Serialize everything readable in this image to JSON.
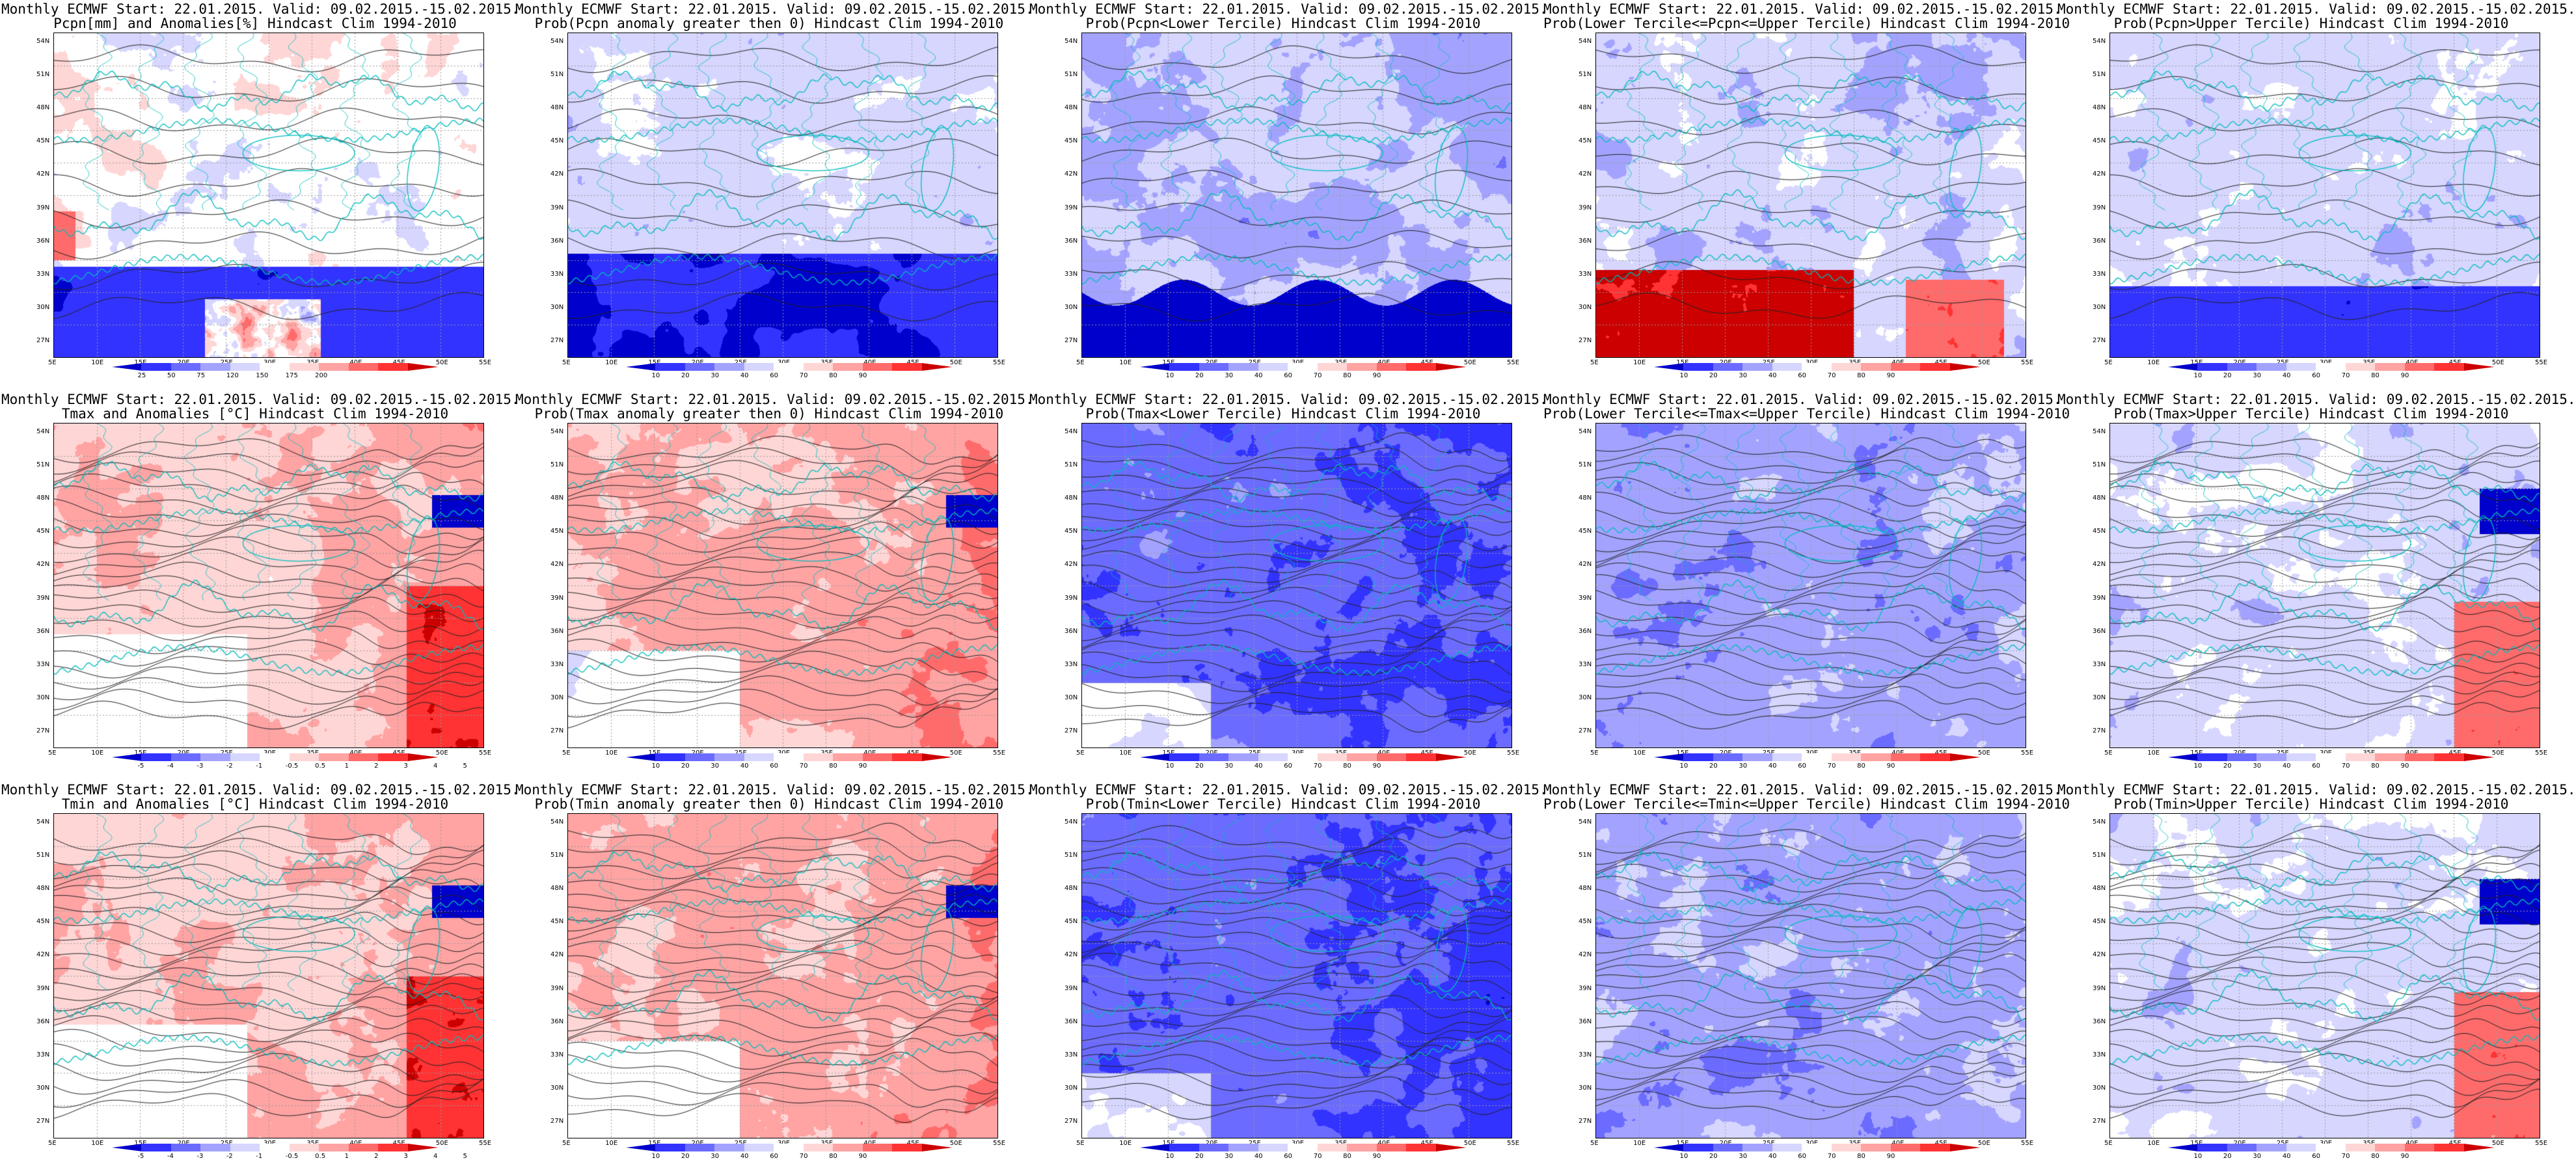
{
  "figure": {
    "panels": [
      {
        "id": "pcpn-anom",
        "title1": "Monthly ECMWF Start: 22.01.2015. Valid: 09.02.2015.-15.02.2015.",
        "title2": "Pcpn[mm] and Anomalies[%] Hindcast Clim 1994-2010",
        "field": "precip-anomaly",
        "contours": "few",
        "colorbar": "pcpn"
      },
      {
        "id": "pcpn-prob-gt0",
        "title1": "Monthly ECMWF Start: 22.01.2015. Valid: 09.02.2015.-15.02.2015.",
        "title2": "Prob(Pcpn anomaly greater then 0) Hindcast Clim 1994-2010",
        "field": "precip-prob-gt0",
        "contours": "few",
        "colorbar": "prob"
      },
      {
        "id": "pcpn-prob-lower",
        "title1": "Monthly ECMWF Start: 22.01.2015. Valid: 09.02.2015.-15.02.2015.",
        "title2": "Prob(Pcpn<Lower Tercile) Hindcast Clim 1994-2010",
        "field": "precip-prob-lower",
        "contours": "few",
        "colorbar": "prob"
      },
      {
        "id": "pcpn-prob-middle",
        "title1": "Monthly ECMWF Start: 22.01.2015. Valid: 09.02.2015.-15.02.2015.",
        "title2": "Prob(Lower Tercile<=Pcpn<=Upper Tercile) Hindcast Clim 1994-2010",
        "field": "precip-prob-middle",
        "contours": "few",
        "colorbar": "prob"
      },
      {
        "id": "pcpn-prob-upper",
        "title1": "Monthly ECMWF Start: 22.01.2015. Valid: 09.02.2015.-15.02.2015.",
        "title2": "Prob(Pcpn>Upper Tercile) Hindcast Clim 1994-2010",
        "field": "precip-prob-upper",
        "contours": "few",
        "colorbar": "prob"
      },
      {
        "id": "tmax-anom",
        "title1": "Monthly ECMWF Start: 22.01.2015. Valid: 09.02.2015.-15.02.2015.",
        "title2": "Tmax and Anomalies [°C] Hindcast Clim 1994-2010",
        "field": "tmax-anomaly",
        "contours": "many",
        "colorbar": "temp"
      },
      {
        "id": "tmax-prob-gt0",
        "title1": "Monthly ECMWF Start: 22.01.2015. Valid: 09.02.2015.-15.02.2015.",
        "title2": "Prob(Tmax anomaly greater then 0) Hindcast Clim 1994-2010",
        "field": "tmax-prob-gt0",
        "contours": "many",
        "colorbar": "prob"
      },
      {
        "id": "tmax-prob-lower",
        "title1": "Monthly ECMWF Start: 22.01.2015. Valid: 09.02.2015.-15.02.2015.",
        "title2": "Prob(Tmax<Lower Tercile) Hindcast Clim 1994-2010",
        "field": "tmax-prob-lower",
        "contours": "many",
        "colorbar": "prob"
      },
      {
        "id": "tmax-prob-middle",
        "title1": "Monthly ECMWF Start: 22.01.2015. Valid: 09.02.2015.-15.02.2015.",
        "title2": "Prob(Lower Tercile<=Tmax<=Upper Tercile) Hindcast Clim 1994-2010",
        "field": "tmax-prob-middle",
        "contours": "many",
        "colorbar": "prob"
      },
      {
        "id": "tmax-prob-upper",
        "title1": "Monthly ECMWF Start: 22.01.2015. Valid: 09.02.2015.-15.02.2015.",
        "title2": "Prob(Tmax>Upper Tercile) Hindcast Clim 1994-2010",
        "field": "tmax-prob-upper",
        "contours": "many",
        "colorbar": "prob"
      },
      {
        "id": "tmin-anom",
        "title1": "Monthly ECMWF Start: 22.01.2015. Valid: 09.02.2015.-15.02.2015.",
        "title2": "Tmin and Anomalies [°C] Hindcast Clim 1994-2010",
        "field": "tmin-anomaly",
        "contours": "many",
        "colorbar": "temp"
      },
      {
        "id": "tmin-prob-gt0",
        "title1": "Monthly ECMWF Start: 22.01.2015. Valid: 09.02.2015.-15.02.2015.",
        "title2": "Prob(Tmin anomaly greater then 0) Hindcast Clim 1994-2010",
        "field": "tmin-prob-gt0",
        "contours": "many",
        "colorbar": "prob"
      },
      {
        "id": "tmin-prob-lower",
        "title1": "Monthly ECMWF Start: 22.01.2015. Valid: 09.02.2015.-15.02.2015.",
        "title2": "Prob(Tmin<Lower Tercile) Hindcast Clim 1994-2010",
        "field": "tmin-prob-lower",
        "contours": "many",
        "colorbar": "prob"
      },
      {
        "id": "tmin-prob-middle",
        "title1": "Monthly ECMWF Start: 22.01.2015. Valid: 09.02.2015.-15.02.2015.",
        "title2": "Prob(Lower Tercile<=Tmin<=Upper Tercile) Hindcast Clim 1994-2010",
        "field": "tmin-prob-middle",
        "contours": "many",
        "colorbar": "prob"
      },
      {
        "id": "tmin-prob-upper",
        "title1": "Monthly ECMWF Start: 22.01.2015. Valid: 09.02.2015.-15.02.2015.",
        "title2": "Prob(Tmin>Upper Tercile) Hindcast Clim 1994-2010",
        "field": "tmin-prob-upper",
        "contours": "many",
        "colorbar": "prob"
      }
    ],
    "lat_ticks": [
      "54N",
      "51N",
      "48N",
      "45N",
      "42N",
      "39N",
      "36N",
      "33N",
      "30N",
      "27N"
    ],
    "lon_ticks": [
      "5E",
      "10E",
      "15E",
      "20E",
      "25E",
      "30E",
      "35E",
      "40E",
      "45E",
      "50E",
      "55E"
    ],
    "colorbars": {
      "pcpn": {
        "ticks": [
          "25",
          "50",
          "75",
          "120",
          "150",
          "175",
          "200"
        ],
        "colors": [
          "#0000cc",
          "#3333ff",
          "#6b6bff",
          "#a3a3ff",
          "#d6d6ff",
          "#ffffff",
          "#ffd6d6",
          "#ffa3a3",
          "#ff6b6b",
          "#ff3333",
          "#cc0000"
        ]
      },
      "prob": {
        "ticks": [
          "10",
          "20",
          "30",
          "40",
          "60",
          "70",
          "80",
          "90"
        ],
        "colors": [
          "#0000cc",
          "#3333ff",
          "#6b6bff",
          "#a3a3ff",
          "#d6d6ff",
          "#ffffff",
          "#ffd6d6",
          "#ffa3a3",
          "#ff6b6b",
          "#ff3333",
          "#cc0000"
        ]
      },
      "temp": {
        "ticks": [
          "-5",
          "-4",
          "-3",
          "-2",
          "-1",
          "-0.5",
          "0.5",
          "1",
          "2",
          "3",
          "4",
          "5"
        ],
        "colors": [
          "#0000cc",
          "#3333ff",
          "#6b6bff",
          "#a3a3ff",
          "#d6d6ff",
          "#ffffff",
          "#ffd6d6",
          "#ffa3a3",
          "#ff6b6b",
          "#ff3333",
          "#cc0000"
        ]
      }
    },
    "colors": {
      "coast": "#00bcbc",
      "contour": "#222222",
      "grid": "#9a9a9a"
    }
  },
  "chart_data": {
    "type": "heatmap",
    "valid_period": "09.02.2015.-15.02.2015.",
    "start": "22.01.2015.",
    "climatology": "Hindcast Clim 1994-2010",
    "region": {
      "lon_range": [
        5,
        55
      ],
      "lat_range": [
        25,
        55
      ]
    },
    "layout": "3 rows x 5 columns",
    "rows": [
      "Pcpn",
      "Tmax",
      "Tmin"
    ],
    "columns": [
      "anomaly",
      "Prob anomaly > 0",
      "Prob < Lower Tercile",
      "Prob Lower <= x <= Upper",
      "Prob > Upper Tercile"
    ]
  }
}
